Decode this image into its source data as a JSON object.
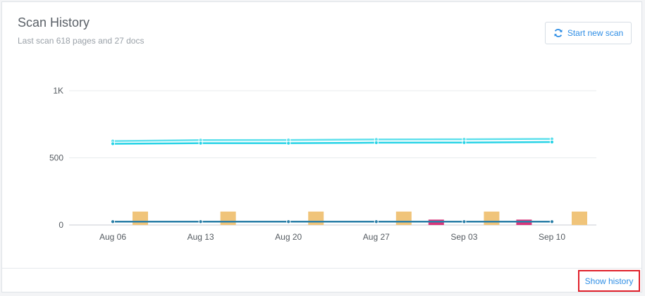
{
  "header": {
    "title": "Scan History",
    "subtitle": "Last scan 618 pages and 27 docs"
  },
  "toolbar": {
    "start_scan_label": "Start new scan",
    "start_scan_icon": "refresh-icon"
  },
  "footer": {
    "show_history_label": "Show history"
  },
  "colors": {
    "accent": "#2f8ee5",
    "highlight_border": "#e0202a",
    "line_top": "#5fe0ec",
    "line_second": "#27d3e6",
    "line_bottom": "#2b7fa8",
    "bar_orange": "#f0c47a",
    "bar_pink": "#d9357a"
  },
  "chart_data": {
    "type": "line",
    "x": [
      "Aug 06",
      "Aug 13",
      "Aug 20",
      "Aug 27",
      "Sep 03",
      "Sep 10"
    ],
    "ylim": [
      0,
      1000
    ],
    "y_ticks": [
      "0",
      "500",
      "1K"
    ],
    "grid": true,
    "series": [
      {
        "values": [
          625,
          632,
          633,
          637,
          638,
          641
        ],
        "color": "#5fe0ec",
        "kind": "line"
      },
      {
        "values": [
          605,
          609,
          609,
          613,
          614,
          618
        ],
        "color": "#27d3e6",
        "kind": "line"
      },
      {
        "values": [
          25,
          25,
          25,
          25,
          25,
          25
        ],
        "color": "#2b7fa8",
        "kind": "line"
      }
    ],
    "bars": [
      {
        "after": "Aug 06",
        "value": 100,
        "color": "#f0c47a"
      },
      {
        "after": "Aug 13",
        "value": 100,
        "color": "#f0c47a"
      },
      {
        "after": "Aug 20",
        "value": 100,
        "color": "#f0c47a"
      },
      {
        "after": "Aug 27",
        "value": 100,
        "color": "#f0c47a"
      },
      {
        "after": "Aug 27",
        "value": 40,
        "color": "#d9357a",
        "offset": 2
      },
      {
        "after": "Sep 03",
        "value": 100,
        "color": "#f0c47a"
      },
      {
        "after": "Sep 03",
        "value": 40,
        "color": "#d9357a",
        "offset": 2
      },
      {
        "after": "Sep 10",
        "value": 100,
        "color": "#f0c47a"
      }
    ]
  }
}
